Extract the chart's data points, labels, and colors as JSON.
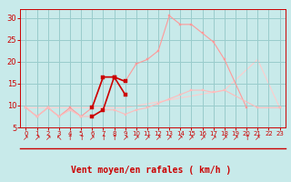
{
  "title": "",
  "xlabel": "Vent moyen/en rafales ( km/h )",
  "bg_color": "#c8eaea",
  "grid_color": "#99cccc",
  "xlim": [
    -0.5,
    23.5
  ],
  "ylim": [
    5,
    32
  ],
  "yticks": [
    5,
    10,
    15,
    20,
    25,
    30
  ],
  "xticks": [
    0,
    1,
    2,
    3,
    4,
    5,
    6,
    7,
    8,
    9,
    10,
    11,
    12,
    13,
    14,
    15,
    16,
    17,
    18,
    19,
    20,
    21,
    22,
    23
  ],
  "series": [
    {
      "x": [
        0,
        1,
        2,
        3,
        4,
        5,
        6,
        7,
        8,
        9,
        10,
        11,
        12,
        13,
        14,
        15,
        16,
        17,
        18,
        20,
        21,
        23
      ],
      "y": [
        9.5,
        7.5,
        9.5,
        7.5,
        9.5,
        7.5,
        9.5,
        16.5,
        16.5,
        15.5,
        19.5,
        20.5,
        22.5,
        30.5,
        28.5,
        28.5,
        26.5,
        24.5,
        20.5,
        9.5,
        null,
        9.5
      ],
      "color": "#ff9999",
      "marker": "s",
      "markersize": 2.0,
      "linewidth": 0.8,
      "zorder": 2
    },
    {
      "x": [
        0,
        1,
        2,
        3,
        4,
        5,
        6,
        7,
        8,
        9,
        10,
        11,
        12,
        13,
        14,
        15,
        16,
        17,
        18,
        21,
        23
      ],
      "y": [
        9.5,
        7.5,
        9.5,
        7.5,
        9.0,
        7.5,
        7.5,
        9.0,
        9.0,
        8.0,
        9.0,
        9.5,
        10.5,
        11.5,
        12.5,
        13.5,
        13.5,
        13.0,
        13.5,
        9.5,
        9.5
      ],
      "color": "#ffbbbb",
      "marker": "s",
      "markersize": 2.0,
      "linewidth": 0.8,
      "zorder": 2
    },
    {
      "x": [
        0,
        4,
        9,
        18,
        21,
        23
      ],
      "y": [
        9.5,
        9.5,
        9.5,
        13.5,
        20.5,
        9.5
      ],
      "color": "#ffcccc",
      "marker": null,
      "markersize": 0,
      "linewidth": 0.8,
      "zorder": 1
    },
    {
      "x": [
        6,
        7,
        8,
        9
      ],
      "y": [
        9.5,
        16.5,
        16.5,
        12.5
      ],
      "color": "#cc0000",
      "marker": "s",
      "markersize": 3.0,
      "linewidth": 1.2,
      "zorder": 4
    },
    {
      "x": [
        6,
        7,
        8,
        9
      ],
      "y": [
        7.5,
        9.0,
        16.5,
        15.5
      ],
      "color": "#cc0000",
      "marker": "s",
      "markersize": 3.0,
      "linewidth": 1.2,
      "zorder": 4
    }
  ],
  "arrow_symbols": [
    "↗",
    "↗",
    "↗",
    "↖",
    "↑",
    "↑",
    "↗",
    "↑",
    "↑",
    "↗",
    "↗",
    "↗",
    "↗",
    "↗",
    "↗",
    "↗",
    "↗",
    "↗",
    "↗",
    "↗",
    "↑",
    "↗"
  ],
  "xlabel_color": "#cc0000",
  "tick_color": "#cc0000",
  "xlabel_fontsize": 7,
  "tick_fontsize_x": 5,
  "tick_fontsize_y": 6
}
